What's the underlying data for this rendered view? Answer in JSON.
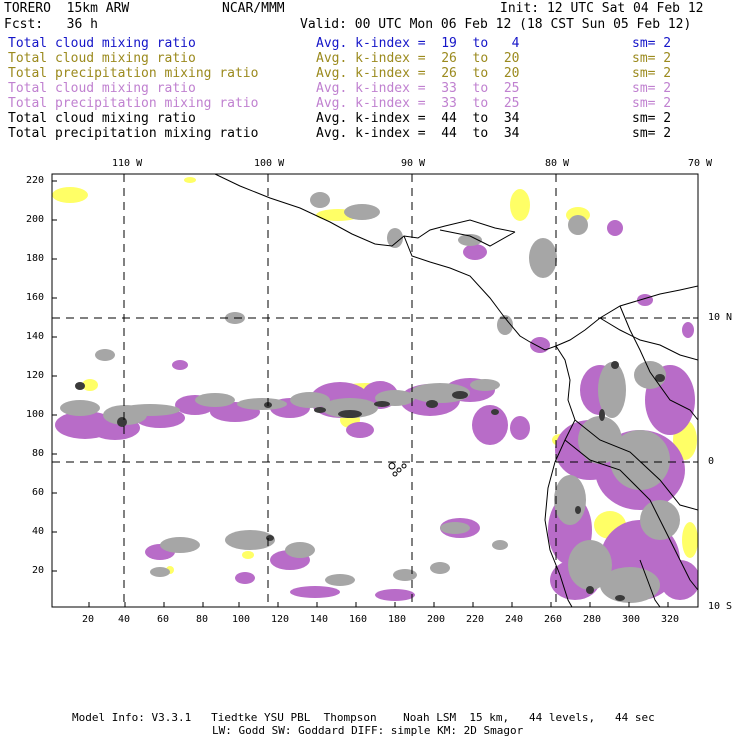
{
  "header": {
    "model": "TORERO  15km ARW",
    "org": "NCAR/MMM",
    "init": "Init: 12 UTC Sat 04 Feb 12",
    "fcst": "Fcst:   36 h",
    "valid": "Valid: 00 UTC Mon 06 Feb 12 (18 CST Sun 05 Feb 12)"
  },
  "legend": [
    {
      "field": "Total cloud mixing ratio",
      "kidx": "Avg. k-index =  19  to   4",
      "sm": "sm= 2",
      "color": "#1515c8"
    },
    {
      "field": "Total cloud mixing ratio",
      "kidx": "Avg. k-index =  26  to  20",
      "sm": "sm= 2",
      "color": "#9b8a1e"
    },
    {
      "field": "Total precipitation mixing ratio",
      "kidx": "Avg. k-index =  26  to  20",
      "sm": "sm= 2",
      "color": "#9b8a1e"
    },
    {
      "field": "Total cloud mixing ratio",
      "kidx": "Avg. k-index =  33  to  25",
      "sm": "sm= 2",
      "color": "#c081d0"
    },
    {
      "field": "Total precipitation mixing ratio",
      "kidx": "Avg. k-index =  33  to  25",
      "sm": "sm= 2",
      "color": "#c081d0"
    },
    {
      "field": "Total cloud mixing ratio",
      "kidx": "Avg. k-index =  44  to  34",
      "sm": "sm= 2",
      "color": "#000000"
    },
    {
      "field": "Total precipitation mixing ratio",
      "kidx": "Avg. k-index =  44  to  34",
      "sm": "sm= 2",
      "color": "#000000"
    }
  ],
  "map": {
    "top_lon_labels": [
      "110 W",
      "100 W",
      "90 W",
      "80 W",
      "70 W"
    ],
    "right_lat_labels": [
      "10 N",
      "0",
      "10 S"
    ],
    "y_ticks": [
      "220",
      "200",
      "180",
      "160",
      "140",
      "120",
      "100",
      "80",
      "60",
      "40",
      "20"
    ],
    "x_ticks": [
      "20",
      "40",
      "60",
      "80",
      "100",
      "120",
      "140",
      "160",
      "180",
      "200",
      "220",
      "240",
      "260",
      "280",
      "300",
      "320"
    ],
    "colors": {
      "yellow": "#ffff66",
      "purple": "#b86cc8",
      "gray": "#a6a6a6",
      "dark": "#3a3a3a",
      "grid": "#000000"
    }
  },
  "footer": {
    "line1": "Model Info: V3.3.1   Tiedtke YSU PBL  Thompson    Noah LSM  15 km,   44 levels,   44 sec",
    "line2": "LW: Godd SW: Goddard DIFF: simple KM: 2D Smagor"
  }
}
